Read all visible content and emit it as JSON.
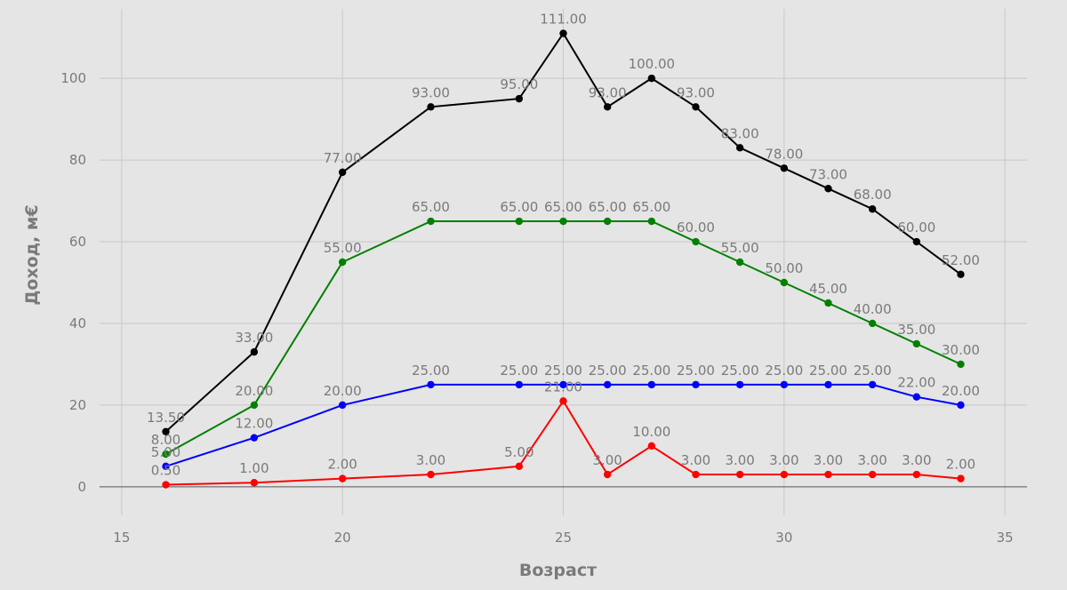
{
  "chart_data": {
    "type": "line",
    "title": "",
    "xlabel": "Возраст",
    "ylabel": "Доход, м€",
    "xlim": [
      14.5,
      35.5
    ],
    "ylim": [
      -7,
      117
    ],
    "xticks": [
      15,
      20,
      25,
      30,
      35
    ],
    "yticks": [
      0,
      20,
      40,
      60,
      80,
      100
    ],
    "grid": true,
    "legend": "none",
    "series": [
      {
        "color": "#000000",
        "points": [
          [
            16,
            13.5
          ],
          [
            18,
            33
          ],
          [
            20,
            77
          ],
          [
            22,
            93
          ],
          [
            24,
            95
          ],
          [
            25,
            111
          ],
          [
            26,
            93
          ],
          [
            27,
            100
          ],
          [
            28,
            93
          ],
          [
            29,
            83
          ],
          [
            30,
            78
          ],
          [
            31,
            73
          ],
          [
            32,
            68
          ],
          [
            33,
            60
          ],
          [
            34,
            52
          ]
        ]
      },
      {
        "color": "#008000",
        "points": [
          [
            16,
            8
          ],
          [
            18,
            20
          ],
          [
            20,
            55
          ],
          [
            22,
            65
          ],
          [
            24,
            65
          ],
          [
            25,
            65
          ],
          [
            26,
            65
          ],
          [
            27,
            65
          ],
          [
            28,
            60
          ],
          [
            29,
            55
          ],
          [
            30,
            50
          ],
          [
            31,
            45
          ],
          [
            32,
            40
          ],
          [
            33,
            35
          ],
          [
            34,
            30
          ]
        ]
      },
      {
        "color": "#0000ff",
        "points": [
          [
            16,
            5
          ],
          [
            18,
            12
          ],
          [
            20,
            20
          ],
          [
            22,
            25
          ],
          [
            24,
            25
          ],
          [
            25,
            25
          ],
          [
            26,
            25
          ],
          [
            27,
            25
          ],
          [
            28,
            25
          ],
          [
            29,
            25
          ],
          [
            30,
            25
          ],
          [
            31,
            25
          ],
          [
            32,
            25
          ],
          [
            33,
            22
          ],
          [
            34,
            20
          ]
        ]
      },
      {
        "color": "#ff0000",
        "points": [
          [
            16,
            0.5
          ],
          [
            18,
            1
          ],
          [
            20,
            2
          ],
          [
            22,
            3
          ],
          [
            24,
            5
          ],
          [
            25,
            21
          ],
          [
            26,
            3
          ],
          [
            27,
            10
          ],
          [
            28,
            3
          ],
          [
            29,
            3
          ],
          [
            30,
            3
          ],
          [
            31,
            3
          ],
          [
            32,
            3
          ],
          [
            33,
            3
          ],
          [
            34,
            2
          ]
        ]
      }
    ]
  }
}
